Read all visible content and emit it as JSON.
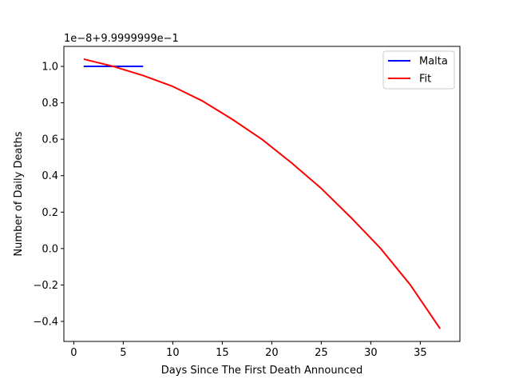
{
  "chart_data": {
    "type": "line",
    "title": "",
    "offset_label": "1e−8+9.9999999e−1",
    "xlabel": "Days Since The First Death Announced",
    "ylabel": "Number of Daily Deaths",
    "xlim": [
      -1,
      39
    ],
    "ylim": [
      -0.51,
      1.11
    ],
    "x_ticks": [
      0,
      5,
      10,
      15,
      20,
      25,
      30,
      35
    ],
    "x_tick_labels": [
      "0",
      "5",
      "10",
      "15",
      "20",
      "25",
      "30",
      "35"
    ],
    "y_ticks": [
      -0.4,
      -0.2,
      0.0,
      0.2,
      0.4,
      0.6,
      0.8,
      1.0
    ],
    "y_tick_labels": [
      "−0.4",
      "−0.2",
      "0.0",
      "0.2",
      "0.4",
      "0.6",
      "0.8",
      "1.0"
    ],
    "grid": false,
    "legend_position": "top-right",
    "series": [
      {
        "name": "Malta",
        "color": "#0000ff",
        "x": [
          1,
          2,
          3,
          4,
          5,
          6,
          7
        ],
        "y": [
          1.0,
          1.0,
          1.0,
          1.0,
          1.0,
          1.0,
          1.0
        ]
      },
      {
        "name": "Fit",
        "color": "#ff0000",
        "x": [
          1,
          4,
          7,
          10,
          13,
          16,
          19,
          22,
          25,
          28,
          31,
          34,
          37
        ],
        "y": [
          1.04,
          1.0,
          0.95,
          0.89,
          0.81,
          0.71,
          0.6,
          0.47,
          0.33,
          0.17,
          0.0,
          -0.2,
          -0.44
        ]
      }
    ]
  }
}
